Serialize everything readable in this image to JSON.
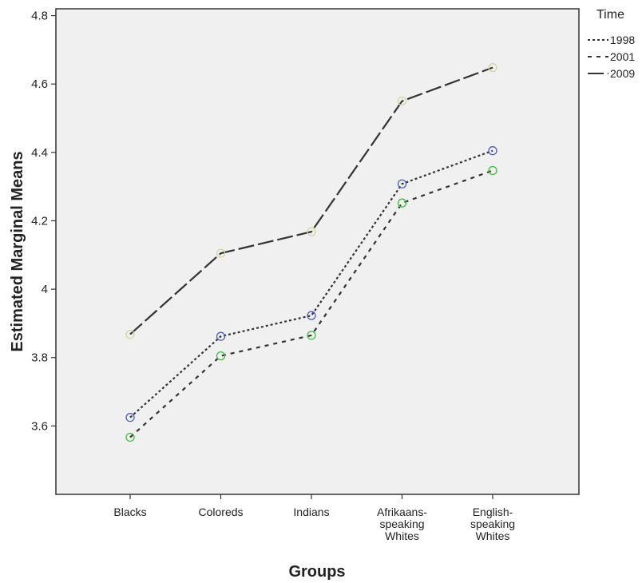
{
  "chart_data": {
    "type": "line",
    "xlabel": "Groups",
    "ylabel": "Estimated Marginal Means",
    "ylim": [
      3.4,
      4.82
    ],
    "yticks": [
      3.6,
      3.8,
      4,
      4.2,
      4.4,
      4.6,
      4.8
    ],
    "ytick_labels": [
      "3.6",
      "3.8",
      "4",
      "4.2",
      "4.4",
      "4.6",
      "4.8"
    ],
    "categories": [
      [
        "Blacks"
      ],
      [
        "Coloreds"
      ],
      [
        "Indians"
      ],
      [
        "Afrikaans-",
        "speaking",
        "Whites"
      ],
      [
        "English-",
        "speaking",
        "Whites"
      ]
    ],
    "legend_title": "Time",
    "legend_position": "top-right, outside plot",
    "grid": false,
    "background": "#f0f0f0",
    "series": [
      {
        "name": "1998",
        "values": [
          3.625,
          3.862,
          3.923,
          4.308,
          4.405
        ],
        "dash": "dotted",
        "marker_color": "#4a5fc1"
      },
      {
        "name": "2001",
        "values": [
          3.567,
          3.805,
          3.865,
          4.252,
          4.347
        ],
        "dash": "short-dash",
        "marker_color": "#3fbf3f"
      },
      {
        "name": "2009",
        "values": [
          3.868,
          4.105,
          4.168,
          4.55,
          4.648
        ],
        "dash": "long-dash",
        "marker_color": "#d4d49a"
      }
    ]
  }
}
